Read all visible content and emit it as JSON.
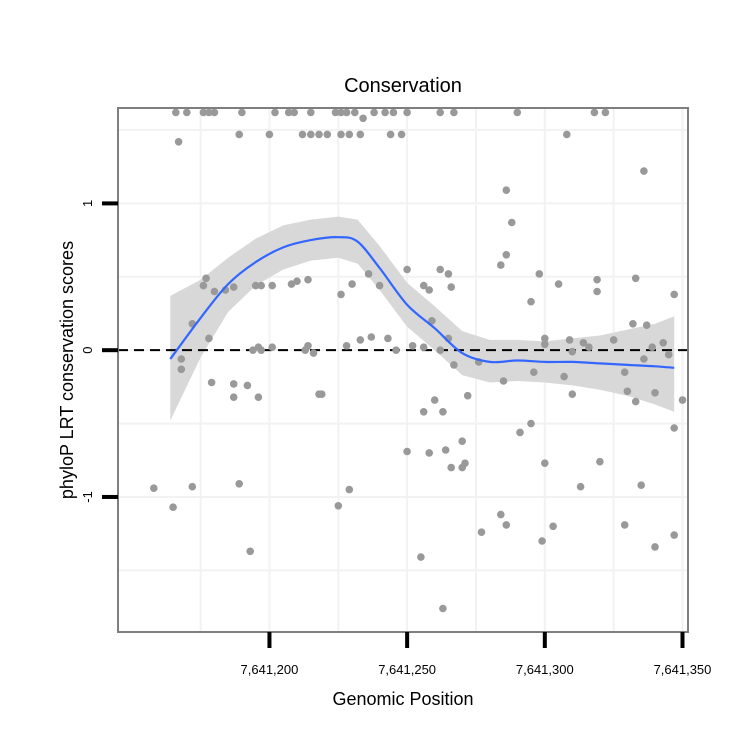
{
  "chart_data": {
    "type": "scatter",
    "title": "Conservation",
    "xlabel": "Genomic Position",
    "ylabel": "phyloP LRT conservation scores",
    "xlim": [
      7641145,
      7641352
    ],
    "ylim": [
      -1.92,
      1.65
    ],
    "x_ticks": [
      7641200,
      7641250,
      7641300,
      7641350
    ],
    "x_tick_labels": [
      "7,641,200",
      "7,641,250",
      "7,641,300",
      "7,641,350"
    ],
    "y_ticks": [
      -1,
      0,
      1
    ],
    "y_tick_labels": [
      "-1",
      "0",
      "1"
    ],
    "grid": true,
    "legend": "none",
    "reference_line": {
      "y": 0,
      "style": "dashed"
    },
    "colors": {
      "points": "#999999",
      "smooth": "#3366ff",
      "band": "#d6d6d6",
      "frame": "#7f7f7f",
      "grid": "#f2f2f2"
    },
    "series": [
      {
        "values": [
          {
            "x": 7641166,
            "y": 1.62
          },
          {
            "x": 7641170,
            "y": 1.62
          },
          {
            "x": 7641176,
            "y": 1.62
          },
          {
            "x": 7641178,
            "y": 1.62
          },
          {
            "x": 7641180,
            "y": 1.62
          },
          {
            "x": 7641190,
            "y": 1.62
          },
          {
            "x": 7641202,
            "y": 1.62
          },
          {
            "x": 7641207,
            "y": 1.62
          },
          {
            "x": 7641209,
            "y": 1.62
          },
          {
            "x": 7641215,
            "y": 1.62
          },
          {
            "x": 7641224,
            "y": 1.62
          },
          {
            "x": 7641226,
            "y": 1.62
          },
          {
            "x": 7641228,
            "y": 1.62
          },
          {
            "x": 7641231,
            "y": 1.62
          },
          {
            "x": 7641238,
            "y": 1.62
          },
          {
            "x": 7641242,
            "y": 1.62
          },
          {
            "x": 7641245,
            "y": 1.62
          },
          {
            "x": 7641250,
            "y": 1.62
          },
          {
            "x": 7641262,
            "y": 1.62
          },
          {
            "x": 7641267,
            "y": 1.62
          },
          {
            "x": 7641290,
            "y": 1.62
          },
          {
            "x": 7641318,
            "y": 1.62
          },
          {
            "x": 7641322,
            "y": 1.62
          },
          {
            "x": 7641234,
            "y": 1.58
          },
          {
            "x": 7641189,
            "y": 1.47
          },
          {
            "x": 7641200,
            "y": 1.47
          },
          {
            "x": 7641212,
            "y": 1.47
          },
          {
            "x": 7641215,
            "y": 1.47
          },
          {
            "x": 7641218,
            "y": 1.47
          },
          {
            "x": 7641221,
            "y": 1.47
          },
          {
            "x": 7641226,
            "y": 1.47
          },
          {
            "x": 7641229,
            "y": 1.47
          },
          {
            "x": 7641233,
            "y": 1.47
          },
          {
            "x": 7641244,
            "y": 1.47
          },
          {
            "x": 7641248,
            "y": 1.47
          },
          {
            "x": 7641308,
            "y": 1.47
          },
          {
            "x": 7641167,
            "y": 1.42
          },
          {
            "x": 7641336,
            "y": 1.22
          },
          {
            "x": 7641286,
            "y": 1.09
          },
          {
            "x": 7641288,
            "y": 0.87
          },
          {
            "x": 7641286,
            "y": 0.65
          },
          {
            "x": 7641284,
            "y": 0.58
          },
          {
            "x": 7641262,
            "y": 0.55
          },
          {
            "x": 7641250,
            "y": 0.55
          },
          {
            "x": 7641298,
            "y": 0.52
          },
          {
            "x": 7641265,
            "y": 0.52
          },
          {
            "x": 7641236,
            "y": 0.52
          },
          {
            "x": 7641177,
            "y": 0.49
          },
          {
            "x": 7641333,
            "y": 0.49
          },
          {
            "x": 7641305,
            "y": 0.45
          },
          {
            "x": 7641319,
            "y": 0.48
          },
          {
            "x": 7641230,
            "y": 0.45
          },
          {
            "x": 7641240,
            "y": 0.44
          },
          {
            "x": 7641201,
            "y": 0.44
          },
          {
            "x": 7641210,
            "y": 0.47
          },
          {
            "x": 7641256,
            "y": 0.44
          },
          {
            "x": 7641176,
            "y": 0.44
          },
          {
            "x": 7641214,
            "y": 0.48
          },
          {
            "x": 7641266,
            "y": 0.43
          },
          {
            "x": 7641258,
            "y": 0.41
          },
          {
            "x": 7641184,
            "y": 0.41
          },
          {
            "x": 7641187,
            "y": 0.43
          },
          {
            "x": 7641195,
            "y": 0.44
          },
          {
            "x": 7641197,
            "y": 0.44
          },
          {
            "x": 7641208,
            "y": 0.45
          },
          {
            "x": 7641180,
            "y": 0.4
          },
          {
            "x": 7641319,
            "y": 0.4
          },
          {
            "x": 7641347,
            "y": 0.38
          },
          {
            "x": 7641226,
            "y": 0.38
          },
          {
            "x": 7641295,
            "y": 0.33
          },
          {
            "x": 7641259,
            "y": 0.2
          },
          {
            "x": 7641172,
            "y": 0.18
          },
          {
            "x": 7641337,
            "y": 0.17
          },
          {
            "x": 7641332,
            "y": 0.18
          },
          {
            "x": 7641265,
            "y": 0.08
          },
          {
            "x": 7641243,
            "y": 0.08
          },
          {
            "x": 7641237,
            "y": 0.09
          },
          {
            "x": 7641233,
            "y": 0.07
          },
          {
            "x": 7641178,
            "y": 0.08
          },
          {
            "x": 7641300,
            "y": 0.08
          },
          {
            "x": 7641309,
            "y": 0.07
          },
          {
            "x": 7641325,
            "y": 0.07
          },
          {
            "x": 7641314,
            "y": 0.05
          },
          {
            "x": 7641300,
            "y": 0.04
          },
          {
            "x": 7641228,
            "y": 0.03
          },
          {
            "x": 7641214,
            "y": 0.03
          },
          {
            "x": 7641252,
            "y": 0.03
          },
          {
            "x": 7641256,
            "y": 0.02
          },
          {
            "x": 7641201,
            "y": 0.02
          },
          {
            "x": 7641196,
            "y": 0.02
          },
          {
            "x": 7641316,
            "y": 0.02
          },
          {
            "x": 7641339,
            "y": 0.02
          },
          {
            "x": 7641343,
            "y": 0.05
          },
          {
            "x": 7641310,
            "y": -0.01
          },
          {
            "x": 7641246,
            "y": 0.0
          },
          {
            "x": 7641262,
            "y": 0.0
          },
          {
            "x": 7641213,
            "y": 0.0
          },
          {
            "x": 7641197,
            "y": 0.0
          },
          {
            "x": 7641194,
            "y": 0.0
          },
          {
            "x": 7641216,
            "y": -0.02
          },
          {
            "x": 7641345,
            "y": -0.03
          },
          {
            "x": 7641336,
            "y": -0.06
          },
          {
            "x": 7641168,
            "y": -0.06
          },
          {
            "x": 7641276,
            "y": -0.08
          },
          {
            "x": 7641267,
            "y": -0.1
          },
          {
            "x": 7641168,
            "y": -0.13
          },
          {
            "x": 7641329,
            "y": -0.15
          },
          {
            "x": 7641296,
            "y": -0.15
          },
          {
            "x": 7641307,
            "y": -0.18
          },
          {
            "x": 7641285,
            "y": -0.21
          },
          {
            "x": 7641179,
            "y": -0.22
          },
          {
            "x": 7641187,
            "y": -0.23
          },
          {
            "x": 7641192,
            "y": -0.24
          },
          {
            "x": 7641310,
            "y": -0.3
          },
          {
            "x": 7641330,
            "y": -0.28
          },
          {
            "x": 7641340,
            "y": -0.29
          },
          {
            "x": 7641272,
            "y": -0.31
          },
          {
            "x": 7641218,
            "y": -0.3
          },
          {
            "x": 7641219,
            "y": -0.3
          },
          {
            "x": 7641196,
            "y": -0.32
          },
          {
            "x": 7641187,
            "y": -0.32
          },
          {
            "x": 7641260,
            "y": -0.34
          },
          {
            "x": 7641350,
            "y": -0.34
          },
          {
            "x": 7641263,
            "y": -0.42
          },
          {
            "x": 7641256,
            "y": -0.42
          },
          {
            "x": 7641333,
            "y": -0.35
          },
          {
            "x": 7641347,
            "y": -0.53
          },
          {
            "x": 7641291,
            "y": -0.56
          },
          {
            "x": 7641295,
            "y": -0.5
          },
          {
            "x": 7641270,
            "y": -0.62
          },
          {
            "x": 7641264,
            "y": -0.68
          },
          {
            "x": 7641258,
            "y": -0.7
          },
          {
            "x": 7641250,
            "y": -0.69
          },
          {
            "x": 7641271,
            "y": -0.77
          },
          {
            "x": 7641266,
            "y": -0.8
          },
          {
            "x": 7641270,
            "y": -0.8
          },
          {
            "x": 7641300,
            "y": -0.77
          },
          {
            "x": 7641320,
            "y": -0.76
          },
          {
            "x": 7641335,
            "y": -0.92
          },
          {
            "x": 7641313,
            "y": -0.93
          },
          {
            "x": 7641189,
            "y": -0.91
          },
          {
            "x": 7641229,
            "y": -0.95
          },
          {
            "x": 7641172,
            "y": -0.93
          },
          {
            "x": 7641158,
            "y": -0.94
          },
          {
            "x": 7641165,
            "y": -1.07
          },
          {
            "x": 7641225,
            "y": -1.06
          },
          {
            "x": 7641284,
            "y": -1.12
          },
          {
            "x": 7641286,
            "y": -1.19
          },
          {
            "x": 7641303,
            "y": -1.2
          },
          {
            "x": 7641329,
            "y": -1.19
          },
          {
            "x": 7641277,
            "y": -1.24
          },
          {
            "x": 7641347,
            "y": -1.26
          },
          {
            "x": 7641299,
            "y": -1.3
          },
          {
            "x": 7641340,
            "y": -1.34
          },
          {
            "x": 7641193,
            "y": -1.37
          },
          {
            "x": 7641255,
            "y": -1.41
          },
          {
            "x": 7641263,
            "y": -1.76
          }
        ]
      }
    ],
    "smooth_line": {
      "x": [
        7641164,
        7641175,
        7641185,
        7641195,
        7641205,
        7641215,
        7641225,
        7641232,
        7641240,
        7641250,
        7641260,
        7641270,
        7641280,
        7641290,
        7641300,
        7641310,
        7641320,
        7641330,
        7641340,
        7641347
      ],
      "y": [
        -0.06,
        0.22,
        0.45,
        0.6,
        0.7,
        0.75,
        0.77,
        0.74,
        0.56,
        0.31,
        0.15,
        -0.02,
        -0.08,
        -0.07,
        -0.08,
        -0.08,
        -0.09,
        -0.1,
        -0.11,
        -0.12
      ],
      "lo": [
        -0.48,
        -0.05,
        0.26,
        0.44,
        0.55,
        0.61,
        0.63,
        0.59,
        0.41,
        0.16,
        0.0,
        -0.17,
        -0.22,
        -0.21,
        -0.22,
        -0.24,
        -0.27,
        -0.31,
        -0.37,
        -0.42
      ],
      "hi": [
        0.37,
        0.48,
        0.63,
        0.76,
        0.85,
        0.89,
        0.91,
        0.89,
        0.71,
        0.46,
        0.3,
        0.13,
        0.07,
        0.07,
        0.06,
        0.08,
        0.1,
        0.14,
        0.18,
        0.23
      ]
    }
  }
}
